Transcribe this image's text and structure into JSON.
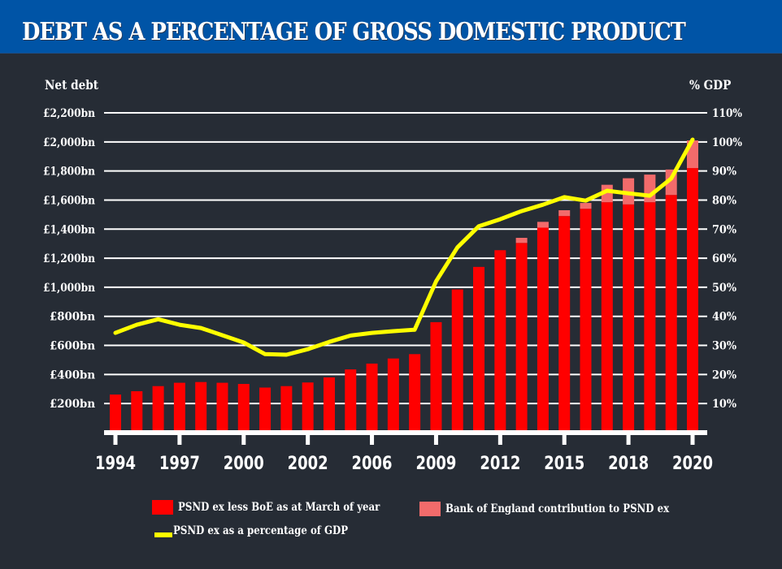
{
  "header": {
    "title": "DEBT AS A PERCENTAGE OF GROSS DOMESTIC PRODUCT",
    "background_color": "#0054a6"
  },
  "chart_data": {
    "type": "bar",
    "title": "DEBT AS A PERCENTAGE OF GROSS DOMESTIC PRODUCT",
    "ylabel": "Net debt",
    "y2label": "% GDP",
    "ylim": [
      0,
      2200
    ],
    "y2lim": [
      0,
      110
    ],
    "grid": true,
    "yticks": [
      {
        "value": 200,
        "label": "£200bn"
      },
      {
        "value": 400,
        "label": "£400bn"
      },
      {
        "value": 600,
        "label": "£600bn"
      },
      {
        "value": 800,
        "label": "£800bn"
      },
      {
        "value": 1000,
        "label": "£1,000bn"
      },
      {
        "value": 1200,
        "label": "£1,200bn"
      },
      {
        "value": 1400,
        "label": "£1,400bn"
      },
      {
        "value": 1600,
        "label": "£1,600bn"
      },
      {
        "value": 1800,
        "label": "£1,800bn"
      },
      {
        "value": 2000,
        "label": "£2,000bn"
      },
      {
        "value": 2200,
        "label": "£2,200bn"
      }
    ],
    "y2ticks": [
      {
        "value": 10,
        "label": "10%"
      },
      {
        "value": 20,
        "label": "20%"
      },
      {
        "value": 30,
        "label": "30%"
      },
      {
        "value": 40,
        "label": "40%"
      },
      {
        "value": 50,
        "label": "50%"
      },
      {
        "value": 60,
        "label": "60%"
      },
      {
        "value": 70,
        "label": "70%"
      },
      {
        "value": 80,
        "label": "80%"
      },
      {
        "value": 90,
        "label": "90%"
      },
      {
        "value": 100,
        "label": "100%"
      },
      {
        "value": 110,
        "label": "110%"
      }
    ],
    "xticks": [
      {
        "index": 0,
        "label": "1994"
      },
      {
        "index": 3,
        "label": "1997"
      },
      {
        "index": 6,
        "label": "2000"
      },
      {
        "index": 9,
        "label": "2002"
      },
      {
        "index": 12,
        "label": "2006"
      },
      {
        "index": 15,
        "label": "2009"
      },
      {
        "index": 18,
        "label": "2012"
      },
      {
        "index": 21,
        "label": "2015"
      },
      {
        "index": 24,
        "label": "2018"
      },
      {
        "index": 27,
        "label": "2020"
      }
    ],
    "series": [
      {
        "name": "PSND ex less BoE as at March of year",
        "type": "bar",
        "color": "#ff0000",
        "values": [
          262,
          285,
          320,
          343,
          348,
          343,
          335,
          310,
          320,
          345,
          380,
          435,
          475,
          510,
          540,
          760,
          985,
          1140,
          1255,
          1305,
          1410,
          1490,
          1540,
          1585,
          1570,
          1585,
          1635,
          1820
        ]
      },
      {
        "name": "Bank of England contribution to PSND ex",
        "type": "bar-stacked",
        "color": "#f26b6b",
        "values": [
          0,
          0,
          0,
          0,
          0,
          0,
          0,
          0,
          0,
          0,
          0,
          0,
          0,
          0,
          0,
          0,
          0,
          0,
          0,
          35,
          40,
          40,
          40,
          120,
          180,
          190,
          175,
          190
        ]
      },
      {
        "name": "PSND ex as a percentage of GDP",
        "type": "line",
        "axis": "right",
        "color": "#ffff00",
        "values": [
          34.3,
          37.1,
          39.0,
          37.1,
          36.0,
          33.5,
          31.0,
          27.0,
          26.8,
          28.7,
          31.2,
          33.4,
          34.3,
          34.9,
          35.4,
          52.0,
          63.7,
          71.0,
          73.4,
          76.2,
          78.4,
          81.0,
          79.8,
          83.2,
          82.3,
          81.5,
          87.4,
          100.8
        ]
      }
    ],
    "legend": [
      {
        "label": "PSND ex less BoE as at March of year",
        "color": "#ff0000",
        "shape": "box"
      },
      {
        "label": "Bank of England contribution to PSND ex",
        "color": "#f26b6b",
        "shape": "box"
      },
      {
        "label": "PSND ex as a percentage of GDP",
        "color": "#ffff00",
        "shape": "line"
      }
    ],
    "legend_position": "bottom"
  }
}
